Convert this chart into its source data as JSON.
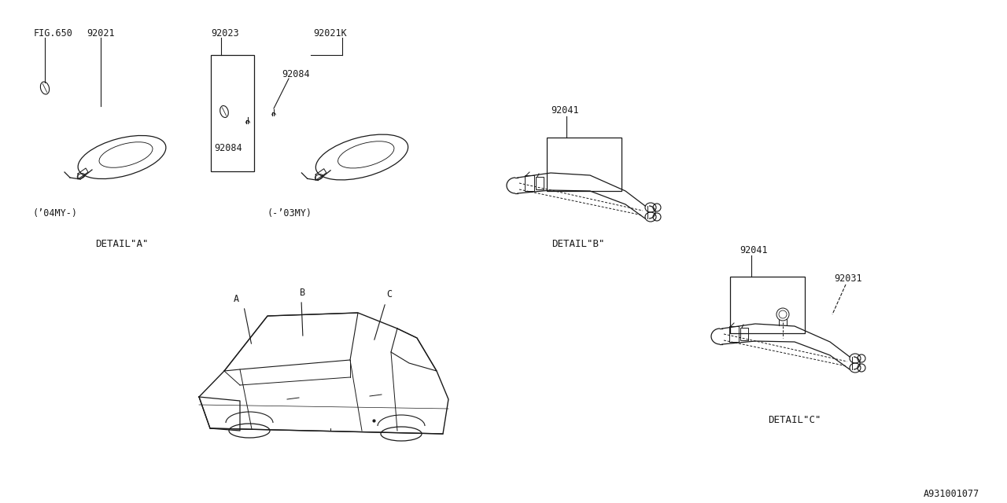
{
  "bg_color": "#ffffff",
  "line_color": "#1a1a1a",
  "fig_id": "A931001077",
  "labels": {
    "fig650": "FIG.650",
    "p92021": "92021",
    "p92023": "92023",
    "p92021K": "92021K",
    "p92084_top": "92084",
    "p92084_bot": "92084",
    "p92041_b": "92041",
    "p92041_c": "92041",
    "p92031": "92031",
    "detail_a": "DETAIL\"A\"",
    "detail_b": "DETAIL\"B\"",
    "detail_c": "DETAIL\"C\"",
    "year04": "(’04MY-)",
    "year03": "(-’03MY)",
    "pt_a": "A",
    "pt_b": "B",
    "pt_c": "C"
  }
}
